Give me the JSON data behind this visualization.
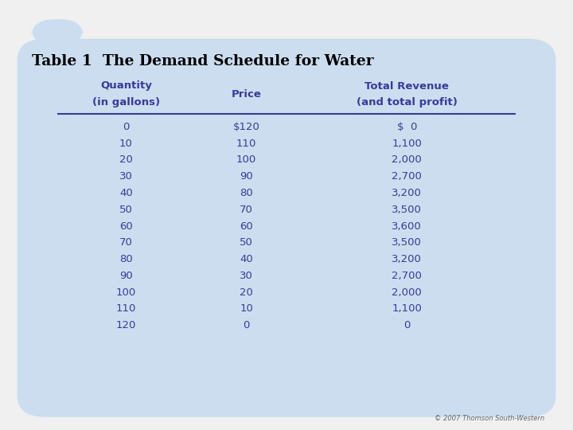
{
  "title": "Table 1  The Demand Schedule for Water",
  "col_headers": [
    [
      "Quantity",
      "(in gallons)"
    ],
    [
      "Price"
    ],
    [
      "Total Revenue",
      "(and total profit)"
    ]
  ],
  "rows": [
    [
      "0",
      "$120",
      "$  0"
    ],
    [
      "10",
      "110",
      "1,100"
    ],
    [
      "20",
      "100",
      "2,000"
    ],
    [
      "30",
      "90",
      "2,700"
    ],
    [
      "40",
      "80",
      "3,200"
    ],
    [
      "50",
      "70",
      "3,500"
    ],
    [
      "60",
      "60",
      "3,600"
    ],
    [
      "70",
      "50",
      "3,500"
    ],
    [
      "80",
      "40",
      "3,200"
    ],
    [
      "90",
      "30",
      "2,700"
    ],
    [
      "100",
      "20",
      "2,000"
    ],
    [
      "110",
      "10",
      "1,100"
    ],
    [
      "120",
      "0",
      "0"
    ]
  ],
  "bg_color": "#ccddf0",
  "outer_bg": "#f0f0f0",
  "title_color": "#000000",
  "header_color": "#3a3a99",
  "data_color": "#3a3a99",
  "copyright_text": "© 2007 Thomson South-Western",
  "copyright_color": "#666666",
  "tab_color": "#b8cfe8"
}
